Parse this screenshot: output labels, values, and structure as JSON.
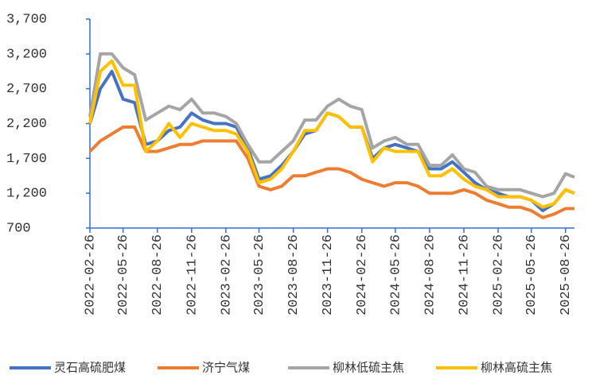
{
  "chart_data": {
    "type": "line",
    "x": [
      "2022-02-26",
      "2022-03-26",
      "2022-04-26",
      "2022-05-26",
      "2022-06-26",
      "2022-07-26",
      "2022-08-26",
      "2022-09-26",
      "2022-10-26",
      "2022-11-26",
      "2022-12-26",
      "2023-01-26",
      "2023-02-26",
      "2023-03-26",
      "2023-04-26",
      "2023-05-26",
      "2023-06-26",
      "2023-07-26",
      "2023-08-26",
      "2023-09-26",
      "2023-10-26",
      "2023-11-26",
      "2023-12-26",
      "2024-01-26",
      "2024-02-26",
      "2024-03-26",
      "2024-04-26",
      "2024-05-26",
      "2024-06-26",
      "2024-07-26",
      "2024-08-26",
      "2024-09-26",
      "2024-10-26",
      "2024-11-26",
      "2024-12-26",
      "2025-01-26",
      "2025-02-26",
      "2025-03-26",
      "2025-04-26",
      "2025-05-26",
      "2025-06-26",
      "2025-07-26",
      "2025-08-26",
      "2025-09-19"
    ],
    "series": [
      {
        "name": "灵石高硫肥煤",
        "color": "#4472c4",
        "values": [
          2200,
          2700,
          2950,
          2550,
          2500,
          1900,
          1950,
          2100,
          2150,
          2350,
          2250,
          2200,
          2200,
          2150,
          1850,
          1400,
          1450,
          1600,
          1800,
          2050,
          2100,
          2350,
          2300,
          2150,
          2150,
          1700,
          1850,
          1900,
          1850,
          1800,
          1550,
          1550,
          1650,
          1500,
          1350,
          1250,
          1200,
          1150,
          1150,
          1100,
          950,
          1050,
          1250,
          1200
        ]
      },
      {
        "name": "济宁气煤",
        "color": "#ed7d31",
        "values": [
          1800,
          1950,
          2050,
          2150,
          2150,
          1800,
          1800,
          1850,
          1900,
          1900,
          1950,
          1950,
          1950,
          1950,
          1700,
          1300,
          1250,
          1300,
          1450,
          1450,
          1500,
          1550,
          1550,
          1500,
          1400,
          1350,
          1300,
          1350,
          1350,
          1300,
          1200,
          1200,
          1200,
          1250,
          1200,
          1100,
          1050,
          1000,
          1000,
          950,
          850,
          900,
          980,
          980
        ]
      },
      {
        "name": "柳林低硫主焦",
        "color": "#a5a5a5",
        "values": [
          2300,
          3200,
          3200,
          3000,
          2900,
          2250,
          2350,
          2450,
          2400,
          2550,
          2350,
          2350,
          2300,
          2200,
          1900,
          1650,
          1650,
          1800,
          1950,
          2250,
          2250,
          2450,
          2550,
          2450,
          2400,
          1850,
          1950,
          2000,
          1900,
          1900,
          1600,
          1600,
          1750,
          1550,
          1500,
          1300,
          1250,
          1250,
          1250,
          1200,
          1150,
          1200,
          1480,
          1430
        ]
      },
      {
        "name": "柳林高硫主焦",
        "color": "#ffc000",
        "values": [
          2200,
          2950,
          3100,
          2750,
          2750,
          1800,
          1950,
          2200,
          2000,
          2200,
          2150,
          2100,
          2100,
          2050,
          1800,
          1350,
          1400,
          1550,
          1800,
          2100,
          2100,
          2350,
          2300,
          2150,
          2150,
          1650,
          1850,
          1800,
          1800,
          1800,
          1450,
          1450,
          1550,
          1400,
          1300,
          1250,
          1150,
          1150,
          1150,
          1100,
          1000,
          1050,
          1250,
          1200
        ]
      }
    ],
    "xlim": [
      "2022-02-26",
      "2025-09-19"
    ],
    "xticks": [
      "2022-02-26",
      "2022-05-26",
      "2022-08-26",
      "2022-11-26",
      "2023-02-26",
      "2023-05-26",
      "2023-08-26",
      "2023-11-26",
      "2024-02-26",
      "2024-05-26",
      "2024-08-26",
      "2024-11-26",
      "2025-02-26",
      "2025-05-26",
      "2025-08-26"
    ],
    "ylim": [
      700,
      3700
    ],
    "yticks": [
      {
        "value": 700,
        "label": "700"
      },
      {
        "value": 1200,
        "label": "1,200"
      },
      {
        "value": 1700,
        "label": "1,700"
      },
      {
        "value": 2200,
        "label": "2,200"
      },
      {
        "value": 2700,
        "label": "2,700"
      },
      {
        "value": 3200,
        "label": "3,200"
      },
      {
        "value": 3700,
        "label": "3,700"
      }
    ],
    "legend": "bottom"
  }
}
